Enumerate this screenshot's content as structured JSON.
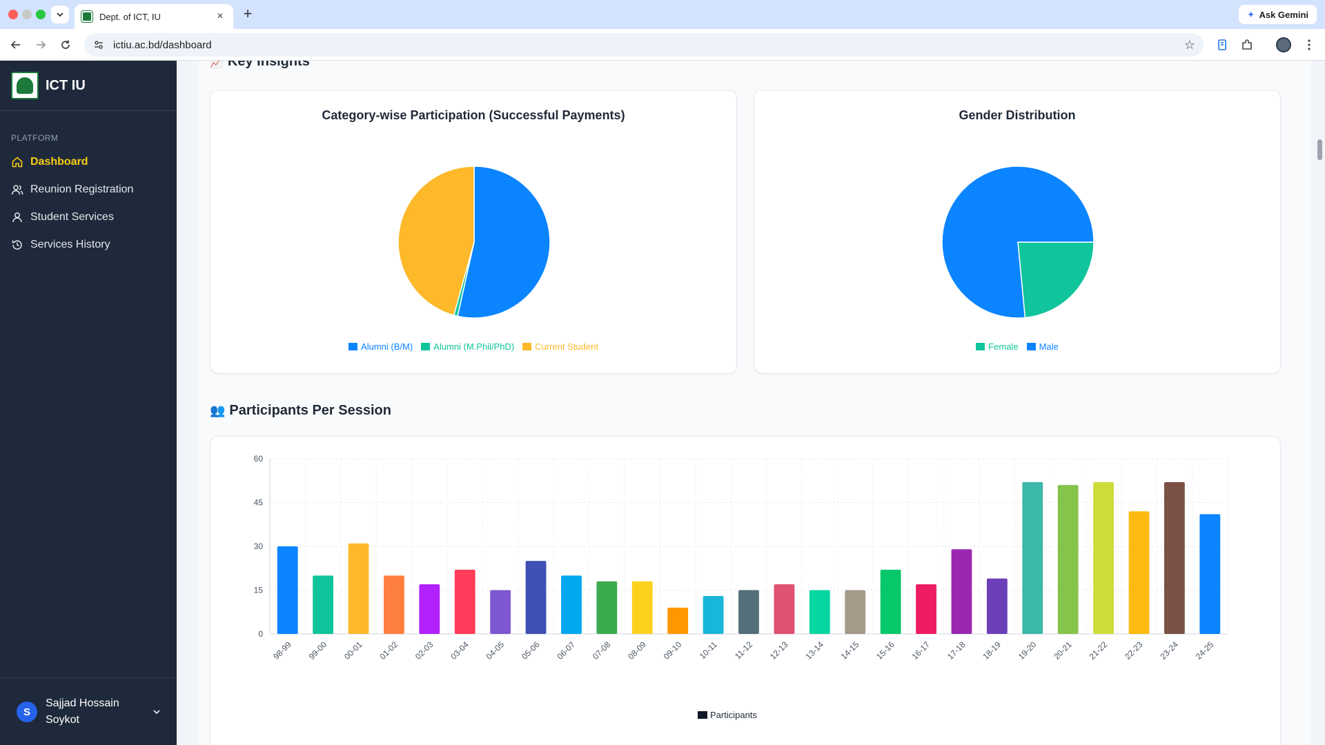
{
  "browser": {
    "tab_title": "Dept. of ICT, IU",
    "tab_close": "×",
    "new_tab": "+",
    "url": "ictiu.ac.bd/dashboard",
    "ask_gemini": "Ask Gemini"
  },
  "sidebar": {
    "brand": "ICT IU",
    "section_label": "PLATFORM",
    "items": [
      {
        "label": "Dashboard",
        "icon": "home-icon",
        "active": true
      },
      {
        "label": "Reunion Registration",
        "icon": "users-icon",
        "active": false
      },
      {
        "label": "Student Services",
        "icon": "user-icon",
        "active": false
      },
      {
        "label": "Services History",
        "icon": "history-icon",
        "active": false
      }
    ],
    "user": {
      "initial": "S",
      "name": "Sajjad Hossain Soykot"
    }
  },
  "main": {
    "key_insights": {
      "emoji": "📈",
      "title": "Key Insights"
    },
    "participants_section": {
      "emoji": "👥",
      "title": "Participants Per Session"
    }
  },
  "chart_data": [
    {
      "type": "pie",
      "title": "Category-wise Participation (Successful Payments)",
      "labels": [
        "Alumni (B/M)",
        "Alumni (M.Phil/PhD)",
        "Current Student"
      ],
      "values": [
        53.5,
        0.8,
        45.7
      ],
      "colors": [
        "#0a84ff",
        "#10c49b",
        "#fdb92a"
      ],
      "legend": "bottom"
    },
    {
      "type": "pie",
      "title": "Gender Distribution",
      "labels": [
        "Female",
        "Male"
      ],
      "values": [
        23.5,
        76.5
      ],
      "colors": [
        "#10c49b",
        "#0a84ff"
      ],
      "legend": "bottom"
    },
    {
      "type": "bar",
      "title": "",
      "categories": [
        "98-99",
        "99-00",
        "00-01",
        "01-02",
        "02-03",
        "03-04",
        "04-05",
        "05-06",
        "06-07",
        "07-08",
        "08-09",
        "09-10",
        "10-11",
        "11-12",
        "12-13",
        "13-14",
        "14-15",
        "15-16",
        "16-17",
        "17-18",
        "18-19",
        "19-20",
        "20-21",
        "21-22",
        "22-23",
        "23-24",
        "24-25"
      ],
      "series": [
        {
          "name": "Participants",
          "values": [
            30,
            20,
            31,
            20,
            17,
            22,
            15,
            25,
            20,
            18,
            18,
            9,
            13,
            15,
            17,
            15,
            15,
            22,
            17,
            29,
            19,
            52,
            51,
            52,
            42,
            52,
            41
          ]
        }
      ],
      "colors": [
        "#0a84ff",
        "#10c49b",
        "#fdb92a",
        "#ff7f3f",
        "#b321ff",
        "#ff3d5a",
        "#7e57d3",
        "#3f51b5",
        "#00a8f0",
        "#3caa4f",
        "#fcd21e",
        "#ff9800",
        "#18b6d9",
        "#546e7a",
        "#e05270",
        "#06d6a0",
        "#a59a8a",
        "#06c86a",
        "#ee1c62",
        "#9b27b0",
        "#6b3fb8",
        "#3cb8a8",
        "#86c34a",
        "#cddc39",
        "#fdbb12",
        "#7b5145",
        "#0a84ff"
      ],
      "yticks": [
        0,
        15,
        30,
        45,
        60
      ],
      "ylim": [
        0,
        60
      ],
      "grid": true,
      "legend": "bottom"
    }
  ]
}
